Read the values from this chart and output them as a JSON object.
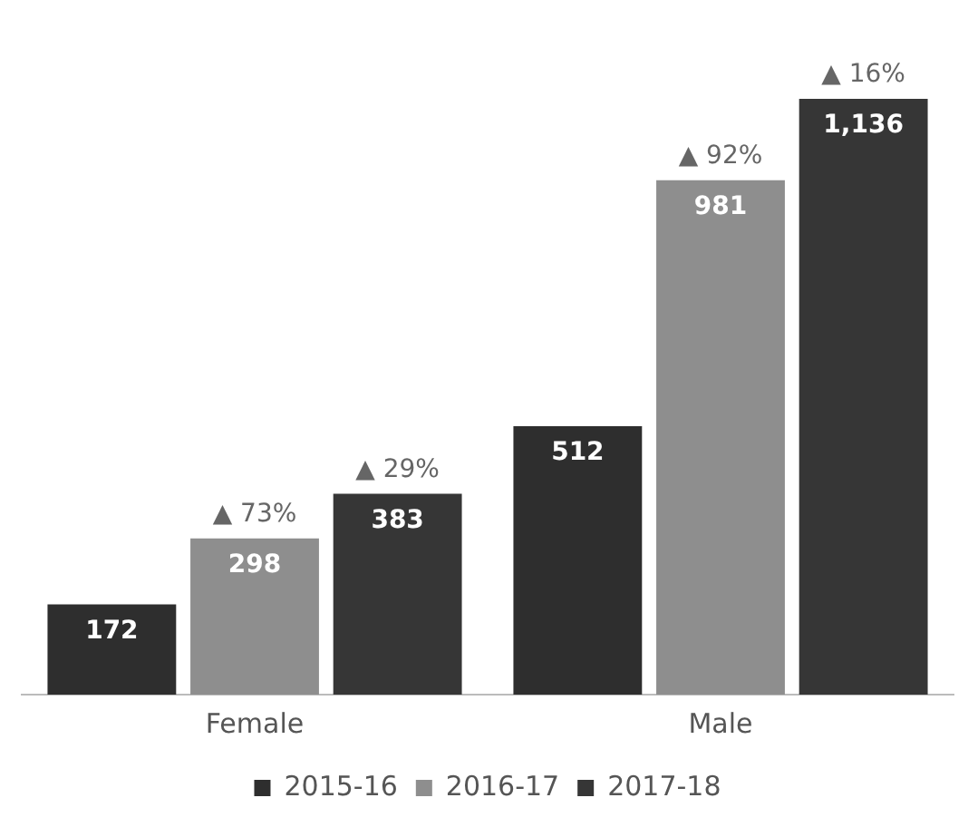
{
  "chart_data": {
    "type": "bar",
    "categories": [
      "Female",
      "Male"
    ],
    "series": [
      {
        "name": "2015-16",
        "color": "#2e2e2e",
        "values": [
          172,
          512
        ],
        "value_labels": [
          "172",
          "512"
        ]
      },
      {
        "name": "2016-17",
        "color": "#8e8e8e",
        "values": [
          298,
          981
        ],
        "value_labels": [
          "298",
          "981"
        ]
      },
      {
        "name": "2017-18",
        "color": "#363636",
        "values": [
          383,
          1136
        ],
        "value_labels": [
          "383",
          "1,136"
        ]
      }
    ],
    "legend": "bottom",
    "grid": false,
    "annotations": [
      "▲ 73%",
      "▲ 29%",
      "▲ 92%",
      "▲ 16%"
    ]
  }
}
